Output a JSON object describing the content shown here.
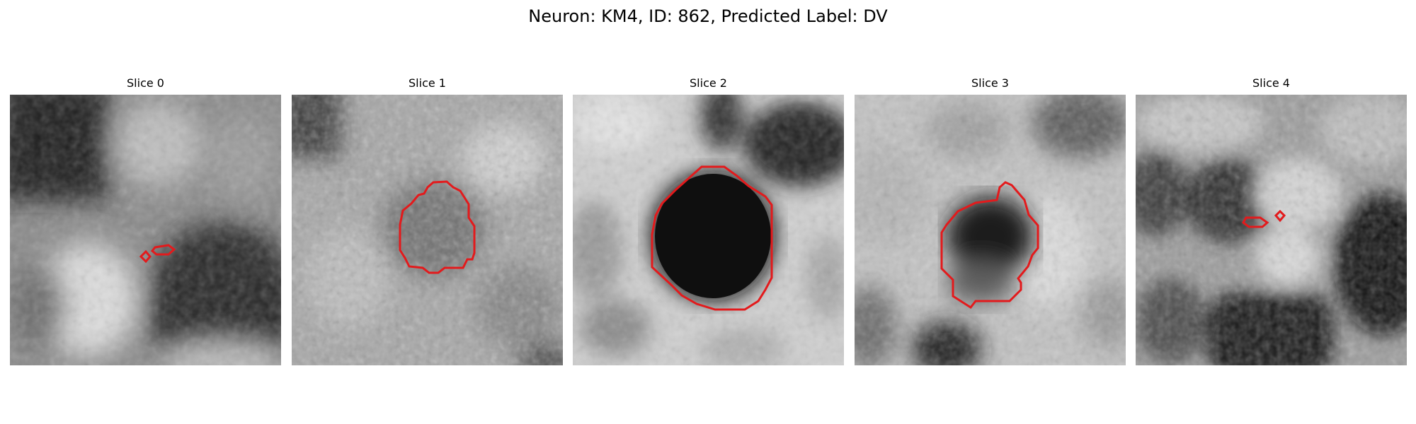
{
  "figure": {
    "title": "Neuron: KM4, ID: 862, Predicted Label: DV",
    "contour_color": "#e31a1c",
    "colormap": "gray"
  },
  "panels": [
    {
      "title": "Slice 0",
      "cell": "two small outline fragments near the right edge of a dark region"
    },
    {
      "title": "Slice 1",
      "cell": "outlined mottled grey region"
    },
    {
      "title": "Slice 2",
      "cell": "outlined dark round cell body"
    },
    {
      "title": "Slice 3",
      "cell": "outlined dark region"
    },
    {
      "title": "Slice 4",
      "cell": "two small outline fragments"
    }
  ]
}
